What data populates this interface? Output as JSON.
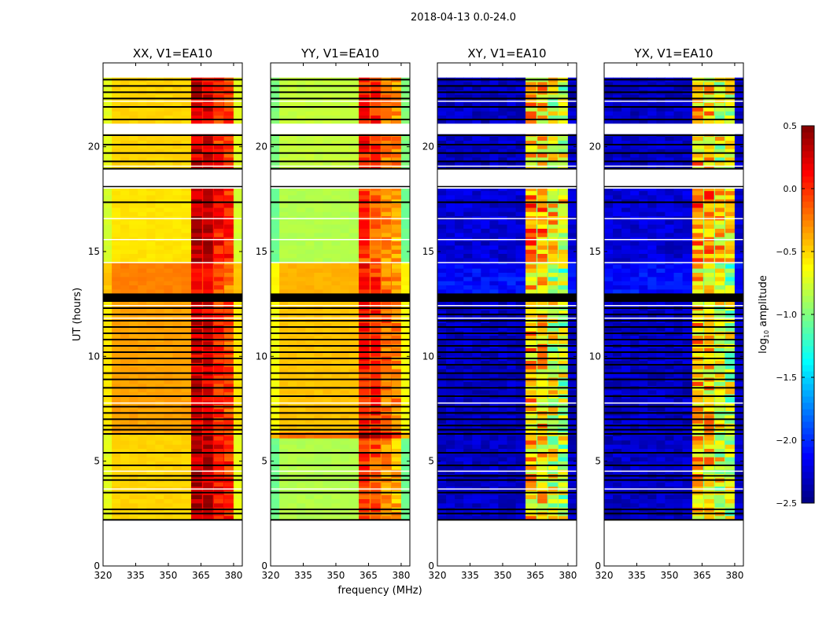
{
  "chart_data": {
    "type": "heatmap",
    "title": "2018-04-13 0.0-24.0",
    "xlabel": "frequency (MHz)",
    "ylabel": "UT (hours)",
    "xlim": [
      320,
      384
    ],
    "ylim": [
      0,
      24
    ],
    "xticks": [
      320,
      335,
      350,
      365,
      380
    ],
    "yticks": [
      0,
      5,
      10,
      15,
      20
    ],
    "colorbar": {
      "label": "log10 amplitude",
      "label_main": "log",
      "label_sub": "10",
      "label_rest": " amplitude",
      "range": [
        -2.5,
        0.5
      ],
      "ticks": [
        "0.5",
        "0.0",
        "−0.5",
        "−1.0",
        "−1.5",
        "−2.0",
        "−2.5"
      ],
      "tick_values": [
        0.5,
        0.0,
        -0.5,
        -1.0,
        -1.5,
        -2.0,
        -2.5
      ],
      "colormap": "jet"
    },
    "data_time_range": [
      2.2,
      23.3
    ],
    "freq_bins": [
      320,
      324,
      328,
      332,
      336,
      340,
      344,
      348,
      352,
      356,
      360.5,
      365.5,
      366,
      370.5,
      371,
      375.3,
      375.7,
      380,
      384
    ],
    "band_bins": {
      "10": 0.15,
      "12": 0.1,
      "14": -0.1,
      "16": -0.2
    },
    "separator_bins": [
      11,
      13,
      15
    ],
    "white_gaps": [
      [
        18.0,
        18.95
      ],
      [
        20.6,
        21.1
      ]
    ],
    "black_band": [
      12.6,
      13.0
    ],
    "black_lines": [
      23.2,
      22.9,
      22.6,
      22.3,
      21.9,
      21.3,
      20.55,
      20.1,
      19.7,
      19.3,
      18.95,
      17.35,
      12.3,
      12.0,
      11.7,
      11.4,
      11.1,
      10.8,
      10.5,
      10.2,
      9.9,
      9.6,
      9.2,
      8.9,
      8.5,
      8.1,
      7.6,
      7.3,
      7.0,
      6.7,
      6.5,
      6.3,
      5.4,
      4.8,
      4.3,
      4.1,
      3.5,
      2.7,
      2.5,
      2.2
    ],
    "white_lines": [
      22.2,
      19.1,
      16.6,
      15.6,
      14.5,
      12.45,
      11.85,
      7.8,
      4.55,
      3.7
    ],
    "panels": [
      {
        "title": "XX, V1=EA10",
        "segments": [
          [
            2.2,
            6.3,
            -0.5,
            0.2
          ],
          [
            6.3,
            12.6,
            -0.35,
            0.1
          ],
          [
            13.0,
            14.5,
            -0.25,
            0.0
          ],
          [
            14.5,
            18.0,
            -0.55,
            0.2
          ],
          [
            18.9,
            23.3,
            -0.5,
            0.1
          ]
        ]
      },
      {
        "title": "YY, V1=EA10",
        "segments": [
          [
            2.2,
            6.1,
            -0.85,
            -0.2
          ],
          [
            6.1,
            6.4,
            -0.2,
            0.3
          ],
          [
            6.4,
            12.6,
            -0.45,
            -0.1
          ],
          [
            13.0,
            14.5,
            -0.4,
            -0.1
          ],
          [
            14.5,
            18.0,
            -0.85,
            -0.2
          ],
          [
            18.9,
            23.3,
            -0.8,
            -0.1
          ]
        ]
      },
      {
        "title": "XY, V1=EA10",
        "segments": [
          [
            2.2,
            12.6,
            -2.3,
            -0.6
          ],
          [
            13.0,
            14.5,
            -2.1,
            -0.7
          ],
          [
            14.5,
            18.0,
            -2.25,
            -0.4
          ],
          [
            18.9,
            23.3,
            -2.3,
            -0.6
          ]
        ]
      },
      {
        "title": "YX, V1=EA10",
        "segments": [
          [
            2.2,
            12.6,
            -2.3,
            -0.6
          ],
          [
            13.0,
            14.5,
            -2.1,
            -0.7
          ],
          [
            14.5,
            18.0,
            -2.25,
            -0.4
          ],
          [
            18.9,
            23.3,
            -2.3,
            -0.6
          ]
        ]
      }
    ]
  }
}
